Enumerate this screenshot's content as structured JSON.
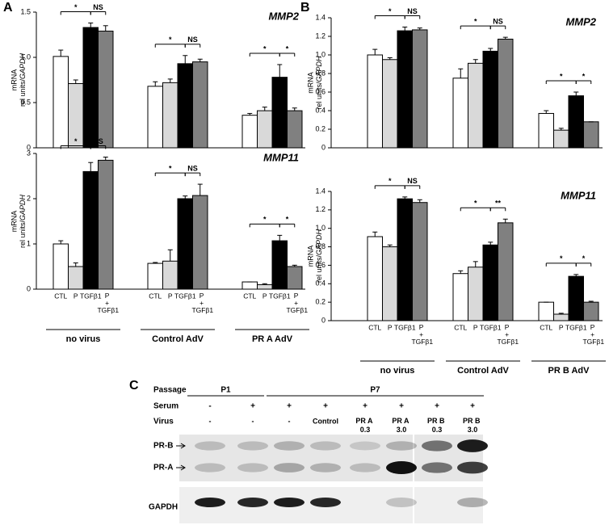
{
  "panel_labels": [
    "A",
    "B",
    "C"
  ],
  "chart_data": [
    {
      "type": "bar",
      "title": "MMP2",
      "ylabel": "mRNA",
      "ylabel2": "rel units/GAPDH",
      "ylim": [
        0,
        1.5
      ],
      "yticks": [
        0,
        0.5,
        {
          "value": 1,
          "label": "1.0"
        },
        1.5
      ],
      "series": [
        {
          "color": "#ffffff",
          "values": [
            1.01,
            0.68,
            0.36
          ],
          "errors": [
            0.07,
            0.05,
            0.02
          ]
        },
        {
          "color": "#d9d9d9",
          "values": [
            0.71,
            0.72,
            0.41
          ],
          "errors": [
            0.04,
            0.04,
            0.04
          ]
        },
        {
          "color": "#000000",
          "values": [
            1.33,
            0.93,
            0.78
          ],
          "errors": [
            0.05,
            0.09,
            0.14
          ]
        },
        {
          "color": "#808080",
          "values": [
            1.29,
            0.95,
            0.41
          ],
          "errors": [
            0.06,
            0.03,
            0.03
          ]
        }
      ],
      "significance": [
        [
          "*",
          "NS"
        ],
        [
          "*",
          "NS"
        ],
        [
          "*",
          "*"
        ]
      ]
    },
    {
      "type": "bar",
      "title": "MMP11",
      "ylabel": "mRNA",
      "ylabel2": "rel units/GAPDH",
      "ylim": [
        0,
        3
      ],
      "yticks": [
        0,
        1,
        2,
        3
      ],
      "categories": [
        "no virus",
        "Control AdV",
        "PR A AdV"
      ],
      "series": [
        {
          "name": "CTL",
          "color": "#ffffff",
          "values": [
            1.0,
            0.57,
            0.16
          ],
          "errors": [
            0.07,
            0.02,
            0
          ]
        },
        {
          "name": "P",
          "color": "#d9d9d9",
          "values": [
            0.5,
            0.62,
            0.1
          ],
          "errors": [
            0.08,
            0.25,
            0.02
          ]
        },
        {
          "name": "TGFβ1",
          "color": "#000000",
          "values": [
            2.6,
            2.0,
            1.07
          ],
          "errors": [
            0.2,
            0.06,
            0.12
          ]
        },
        {
          "name": "P + TGFβ1",
          "color": "#808080",
          "values": [
            2.85,
            2.07,
            0.5
          ],
          "errors": [
            0.07,
            0.25,
            0.03
          ]
        }
      ],
      "significance": [
        [
          "*",
          "NS"
        ],
        [
          "*",
          "NS"
        ],
        [
          "*",
          "*"
        ]
      ]
    },
    {
      "type": "bar",
      "title": "MMP2",
      "ylabel": "mRNA",
      "ylabel2": "rel units/GAPDH",
      "ylim": [
        0,
        1.4
      ],
      "yticks": [
        0,
        0.2,
        0.4,
        0.6,
        0.8,
        {
          "value": 1,
          "label": "1.0"
        },
        1.2,
        1.4
      ],
      "series": [
        {
          "color": "#ffffff",
          "values": [
            1.0,
            0.75,
            0.37
          ],
          "errors": [
            0.06,
            0.1,
            0.03
          ]
        },
        {
          "color": "#d9d9d9",
          "values": [
            0.95,
            0.91,
            0.19
          ],
          "errors": [
            0.02,
            0.04,
            0.02
          ]
        },
        {
          "color": "#000000",
          "values": [
            1.26,
            1.04,
            0.56
          ],
          "errors": [
            0.04,
            0.03,
            0.04
          ]
        },
        {
          "color": "#808080",
          "values": [
            1.27,
            1.17,
            0.28
          ],
          "errors": [
            0.02,
            0.02,
            0
          ]
        }
      ],
      "significance": [
        [
          "*",
          "NS"
        ],
        [
          "*",
          "NS"
        ],
        [
          "*",
          "*"
        ]
      ]
    },
    {
      "type": "bar",
      "title": "MMP11",
      "ylabel": "mRNA",
      "ylabel2": "rel units/GAPDH",
      "ylim": [
        0,
        1.4
      ],
      "yticks": [
        0,
        0.2,
        0.4,
        0.6,
        0.8,
        {
          "value": 1,
          "label": "1.0"
        },
        1.2,
        1.4
      ],
      "categories": [
        "no virus",
        "Control AdV",
        "PR B AdV"
      ],
      "series": [
        {
          "name": "CTL",
          "color": "#ffffff",
          "values": [
            0.91,
            0.51,
            0.2
          ],
          "errors": [
            0.05,
            0.03,
            0
          ]
        },
        {
          "name": "P",
          "color": "#d9d9d9",
          "values": [
            0.8,
            0.58,
            0.07
          ],
          "errors": [
            0.02,
            0.06,
            0.01
          ]
        },
        {
          "name": "TGFβ1",
          "color": "#000000",
          "values": [
            1.32,
            0.82,
            0.48
          ],
          "errors": [
            0.02,
            0.03,
            0.02
          ]
        },
        {
          "name": "P + TGFβ1",
          "color": "#808080",
          "values": [
            1.28,
            1.06,
            0.2
          ],
          "errors": [
            0.03,
            0.04,
            0.01
          ]
        }
      ],
      "significance": [
        [
          "*",
          "NS"
        ],
        [
          "*",
          "**"
        ],
        [
          "*",
          "*"
        ]
      ]
    }
  ],
  "blot": {
    "row_labels": [
      "Passage",
      "Serum",
      "Virus"
    ],
    "passages": [
      "P1",
      "P7"
    ],
    "serum": [
      "-",
      "+",
      "+",
      "+",
      "+",
      "+",
      "+",
      "+"
    ],
    "virus": [
      "-",
      "-",
      "-",
      "Control",
      "PR A 0.3",
      "PR A 3.0",
      "PR B 0.3",
      "PR B 3.0"
    ],
    "bands": [
      "PR-B",
      "PR-A"
    ],
    "loading_control": "GAPDH"
  }
}
